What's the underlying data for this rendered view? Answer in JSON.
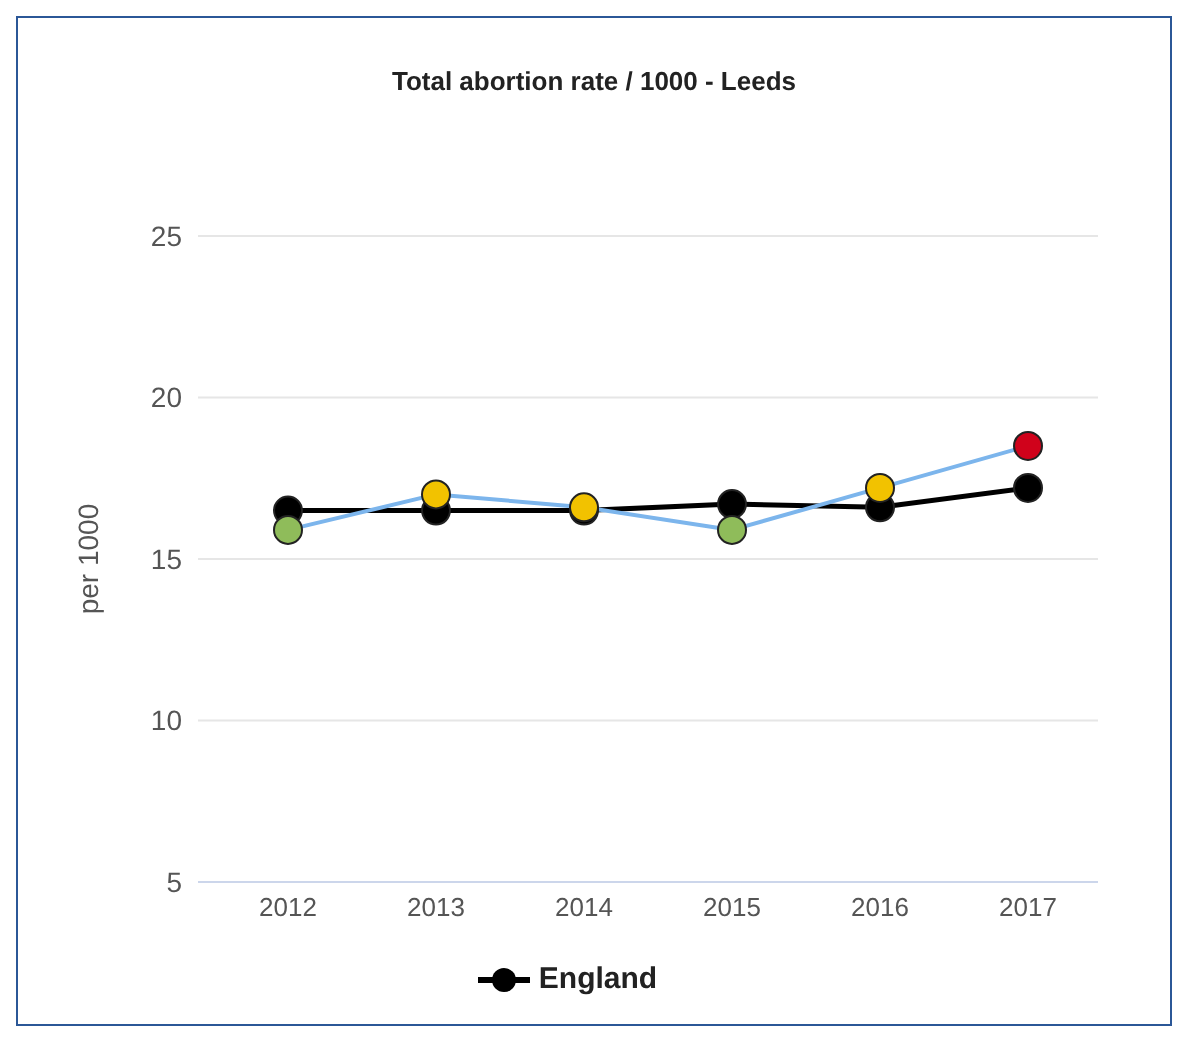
{
  "chart_data": {
    "type": "line",
    "title": "Total abortion rate / 1000 - Leeds",
    "ylabel": "per 1000",
    "categories": [
      "2012",
      "2013",
      "2014",
      "2015",
      "2016",
      "2017"
    ],
    "series": [
      {
        "color": "#7cb5ec",
        "colors": [
          "#8fbc5a",
          "#f2c200",
          "#f2c200",
          "#8fbc5a",
          "#f2c200",
          "#d0021b"
        ],
        "values": [
          15.9,
          17.0,
          16.6,
          15.9,
          17.2,
          18.5
        ]
      },
      {
        "name": "England",
        "color": "#000000",
        "values": [
          16.5,
          16.5,
          16.5,
          16.7,
          16.6,
          17.2
        ]
      }
    ],
    "ylim": [
      5,
      25
    ],
    "yticks": [
      5,
      10,
      15,
      20,
      25
    ],
    "grid": "y",
    "legend": "bottom",
    "marker": "circle"
  }
}
